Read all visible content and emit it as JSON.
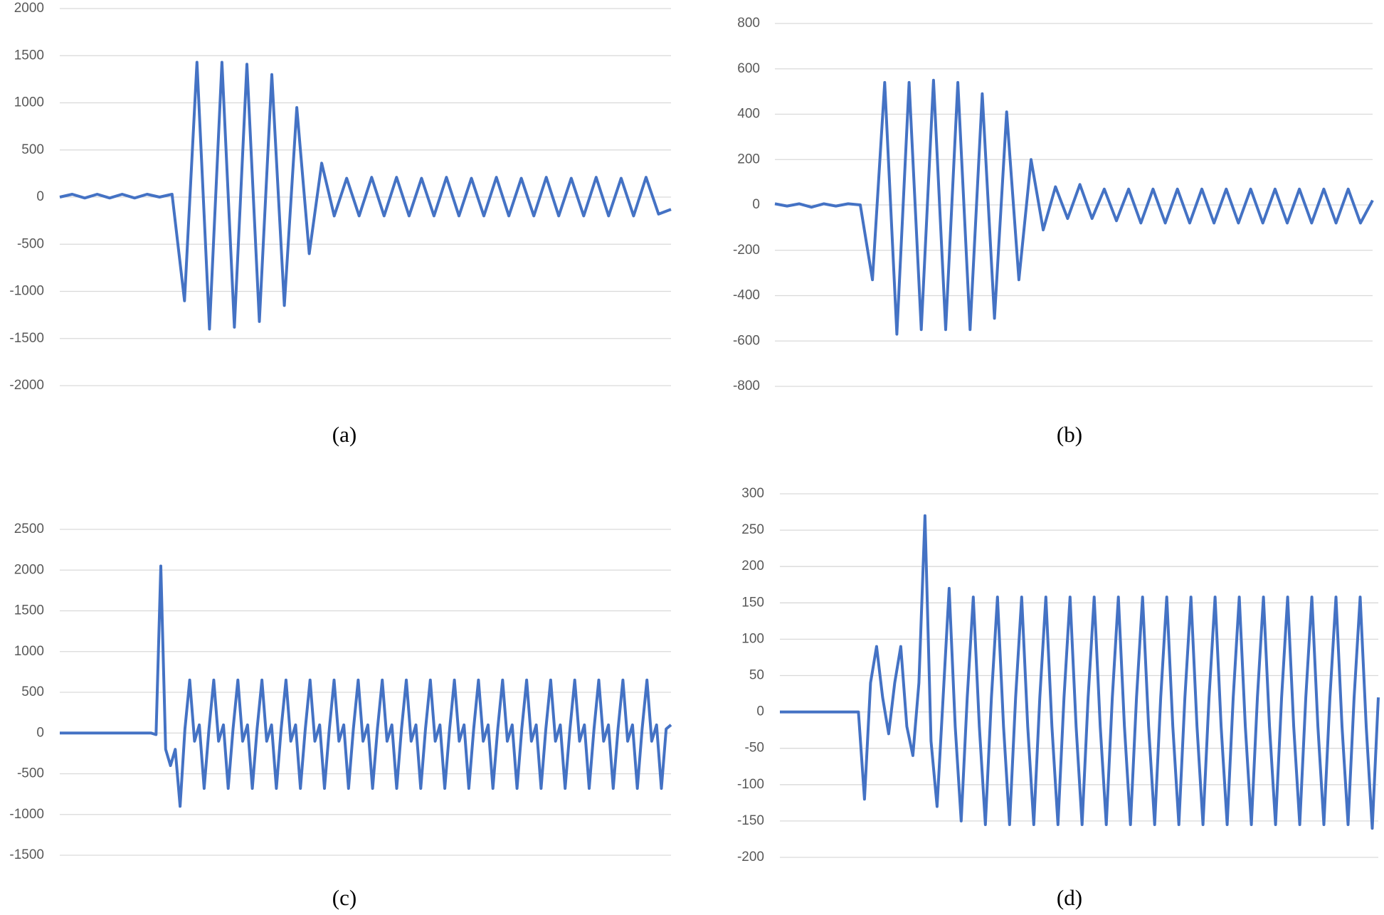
{
  "chart_data": [
    {
      "type": "line",
      "caption": "(a)",
      "color": "#4472c4",
      "grid": true,
      "ylim": [
        -2000,
        2000
      ],
      "yticks": [
        -2000,
        -1500,
        -1000,
        -500,
        0,
        500,
        1000,
        1500,
        2000
      ],
      "values": [
        0,
        30,
        -10,
        30,
        -10,
        30,
        -10,
        30,
        0,
        30,
        -1100,
        1430,
        -1400,
        1430,
        -1380,
        1410,
        -1320,
        1300,
        -1150,
        950,
        -600,
        360,
        -200,
        200,
        -200,
        210,
        -200,
        210,
        -200,
        200,
        -200,
        210,
        -200,
        200,
        -200,
        210,
        -200,
        200,
        -200,
        210,
        -200,
        200,
        -200,
        210,
        -200,
        200,
        -200,
        210,
        -180,
        -130
      ]
    },
    {
      "type": "line",
      "caption": "(b)",
      "color": "#4472c4",
      "grid": true,
      "ylim": [
        -800,
        800
      ],
      "yticks": [
        -800,
        -600,
        -400,
        -200,
        0,
        200,
        400,
        600,
        800
      ],
      "values": [
        5,
        -5,
        5,
        -10,
        5,
        -5,
        5,
        0,
        -330,
        540,
        -570,
        540,
        -550,
        550,
        -550,
        540,
        -550,
        490,
        -500,
        410,
        -330,
        200,
        -110,
        80,
        -60,
        90,
        -60,
        70,
        -70,
        70,
        -80,
        70,
        -80,
        70,
        -80,
        70,
        -80,
        70,
        -80,
        70,
        -80,
        70,
        -80,
        70,
        -80,
        70,
        -80,
        70,
        -80,
        20
      ]
    },
    {
      "type": "line",
      "caption": "(c)",
      "color": "#4472c4",
      "grid": true,
      "ylim": [
        -1500,
        2500
      ],
      "yticks": [
        -1500,
        -1000,
        -500,
        0,
        500,
        1000,
        1500,
        2000,
        2500
      ],
      "values": [
        0,
        0,
        0,
        0,
        0,
        0,
        0,
        0,
        0,
        0,
        0,
        0,
        0,
        0,
        0,
        0,
        0,
        0,
        0,
        0,
        -20,
        2050,
        -200,
        -400,
        -200,
        -900,
        50,
        650,
        -100,
        100,
        -680,
        50,
        650,
        -100,
        100,
        -680,
        50,
        650,
        -100,
        100,
        -680,
        50,
        650,
        -100,
        100,
        -680,
        50,
        650,
        -100,
        100,
        -680,
        50,
        650,
        -100,
        100,
        -680,
        50,
        650,
        -100,
        100,
        -680,
        50,
        650,
        -100,
        100,
        -680,
        50,
        650,
        -100,
        100,
        -680,
        50,
        650,
        -100,
        100,
        -680,
        50,
        650,
        -100,
        100,
        -680,
        50,
        650,
        -100,
        100,
        -680,
        50,
        650,
        -100,
        100,
        -680,
        50,
        650,
        -100,
        100,
        -680,
        50,
        650,
        -100,
        100,
        -680,
        50,
        650,
        -100,
        100,
        -680,
        50,
        650,
        -100,
        100,
        -680,
        50,
        650,
        -100,
        100,
        -680,
        50,
        650,
        -100,
        100,
        -680,
        50,
        650,
        -100,
        100,
        -680,
        50,
        100
      ]
    },
    {
      "type": "line",
      "caption": "(d)",
      "color": "#4472c4",
      "grid": true,
      "ylim": [
        -200,
        300
      ],
      "yticks": [
        -200,
        -150,
        -100,
        -50,
        0,
        50,
        100,
        150,
        200,
        250,
        300
      ],
      "values": [
        0,
        0,
        0,
        0,
        0,
        0,
        0,
        0,
        0,
        0,
        0,
        0,
        0,
        0,
        -120,
        40,
        90,
        20,
        -30,
        40,
        90,
        -20,
        -60,
        40,
        270,
        -40,
        -130,
        20,
        170,
        -20,
        -150,
        20,
        158,
        -20,
        -155,
        20,
        158,
        -20,
        -155,
        20,
        158,
        -20,
        -155,
        20,
        158,
        -20,
        -155,
        20,
        158,
        -20,
        -155,
        20,
        158,
        -20,
        -155,
        20,
        158,
        -20,
        -155,
        20,
        158,
        -20,
        -155,
        20,
        158,
        -20,
        -155,
        20,
        158,
        -20,
        -155,
        20,
        158,
        -20,
        -155,
        20,
        158,
        -20,
        -155,
        20,
        158,
        -20,
        -155,
        20,
        158,
        -20,
        -155,
        20,
        158,
        -20,
        -155,
        20,
        158,
        -20,
        -155,
        20,
        158,
        -20,
        -160,
        20
      ]
    }
  ]
}
